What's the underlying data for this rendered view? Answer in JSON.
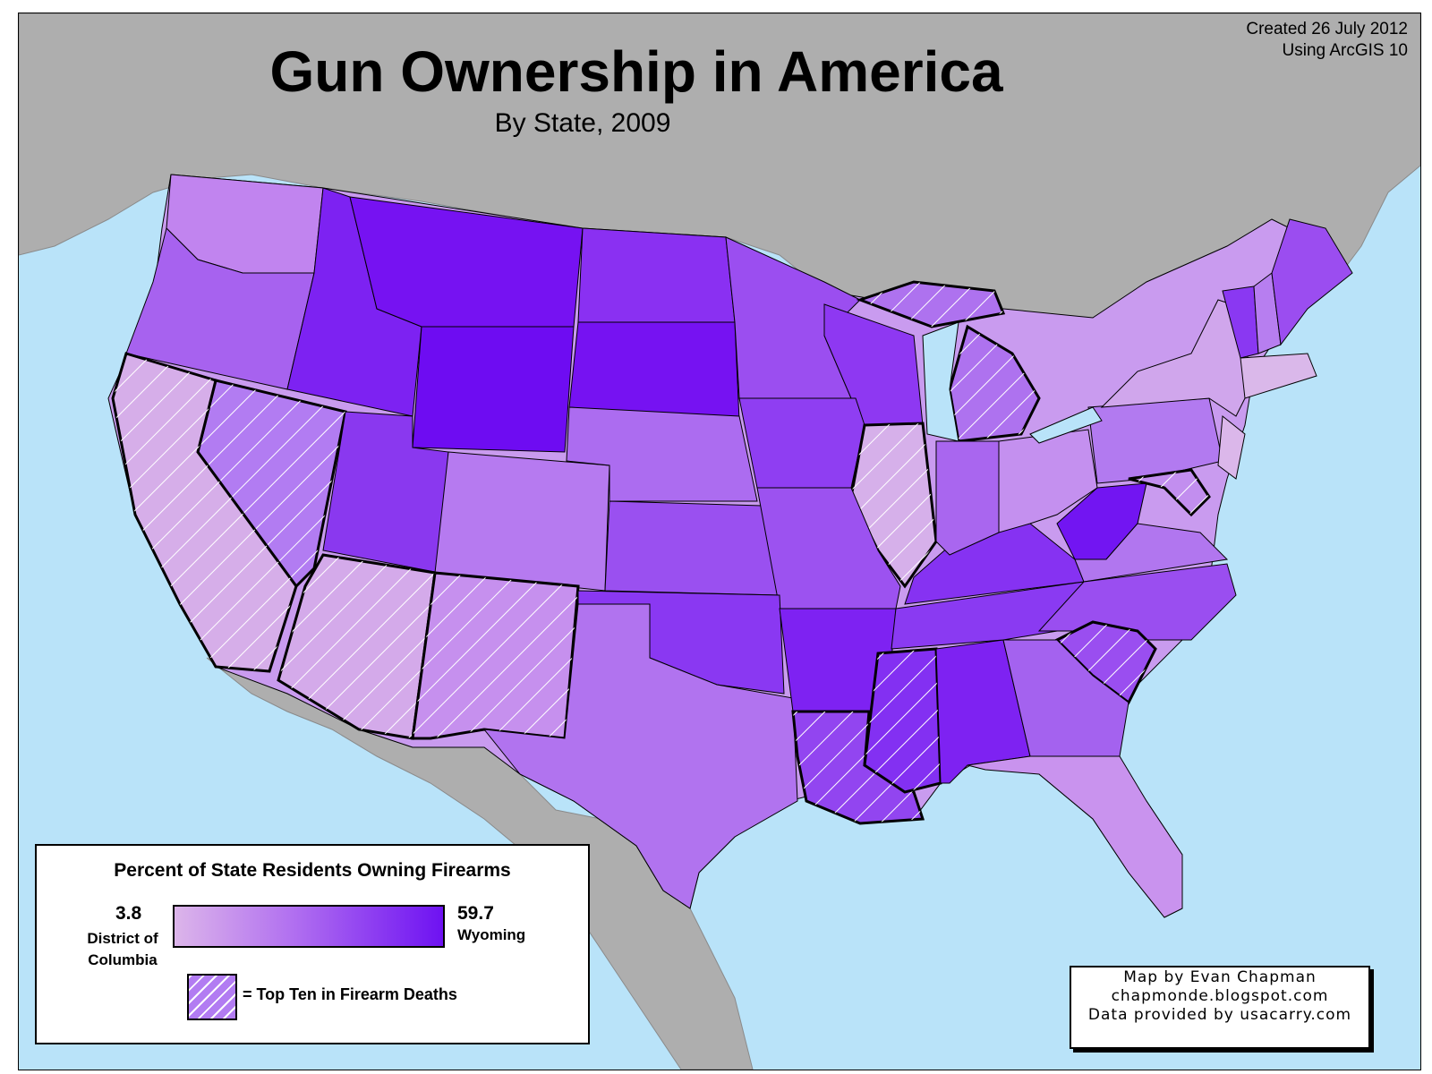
{
  "title": "Gun Ownership in America",
  "subtitle": "By State, 2009",
  "credits_top": {
    "line1": "Created 26 July 2012",
    "line2": "Using ArcGIS 10"
  },
  "legend": {
    "title": "Percent of State Residents Owning Firearms",
    "min_value": "3.8",
    "min_label_line1": "District of",
    "min_label_line2": "Columbia",
    "max_value": "59.7",
    "max_label": "Wyoming",
    "hatch_label": "= Top Ten in Firearm Deaths"
  },
  "credits_bottom": {
    "line1": "Map by Evan Chapman",
    "line2": "chapmonde.blogspot.com",
    "line3": "Data provided by usacarry.com"
  },
  "colors": {
    "ocean": "#b9e3f9",
    "land": "#aeaeae",
    "ramp_low": "#dcb5ea",
    "ramp_mid": "#b06ef0",
    "ramp_high": "#6e12f2",
    "hatch_line": "#ffffff",
    "outline": "#000000"
  },
  "top_ten_firearm_deaths": [
    "California",
    "Nevada",
    "Arizona",
    "New Mexico",
    "Louisiana",
    "Mississippi",
    "South Carolina",
    "Michigan",
    "Illinois",
    "Maryland"
  ]
}
